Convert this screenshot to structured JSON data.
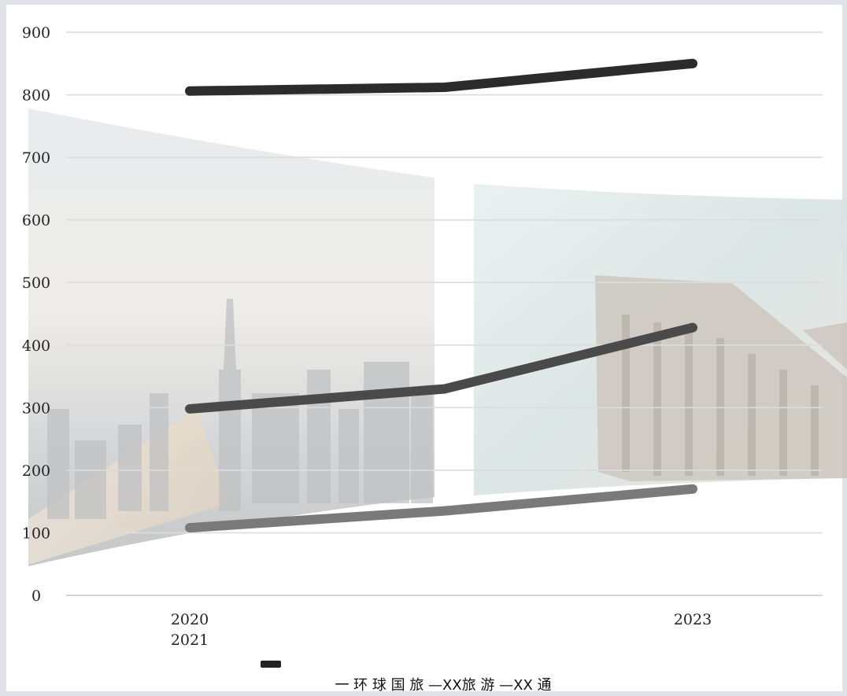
{
  "chart_data": {
    "type": "line",
    "title": "",
    "xlabel": "",
    "ylabel": "",
    "ylim": [
      0,
      900
    ],
    "yticks": [
      "0",
      "100",
      "200",
      "300",
      "400",
      "500",
      "600",
      "700",
      "800",
      "900"
    ],
    "x_tick_labels": [
      {
        "line1": "2020",
        "line2": "2021"
      },
      {
        "line1": "",
        "line2": ""
      },
      {
        "line1": "2023",
        "line2": ""
      }
    ],
    "categories": [
      "2020 / 2021",
      "",
      "2023"
    ],
    "series": [
      {
        "values": [
          806,
          812,
          850
        ],
        "color": "#2b2b2b"
      },
      {
        "values": [
          298,
          330,
          428
        ],
        "color": "#4a4a4a"
      },
      {
        "values": [
          108,
          135,
          170
        ],
        "color": "#7a7a7a"
      }
    ],
    "grid": true,
    "legend": {
      "position": "bottom",
      "text": "一 环 球 国 旅 —XX旅 游 —XX  通"
    }
  }
}
